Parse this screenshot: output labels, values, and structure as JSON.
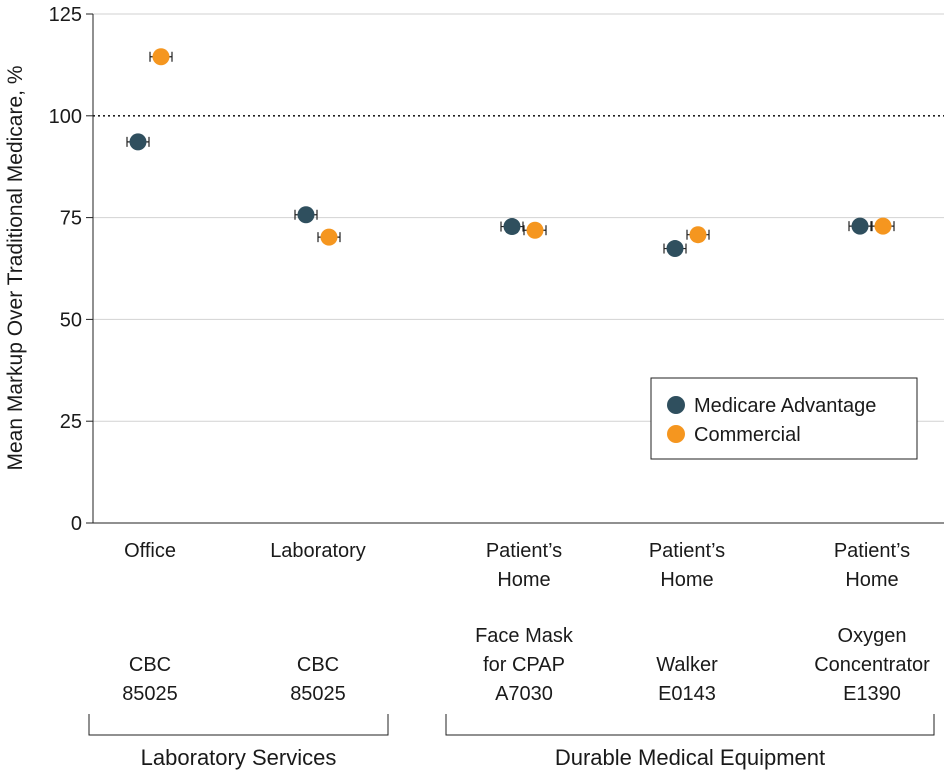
{
  "chart_data": {
    "type": "scatter",
    "ylabel": "Mean Markup Over Traditional Medicare, %",
    "ylim": [
      0,
      125
    ],
    "yticks": [
      0,
      25,
      50,
      75,
      100,
      125
    ],
    "reference_line": 100,
    "grid": true,
    "legend_position": "bottom-right",
    "categories": [
      {
        "setting": [
          "Office"
        ],
        "item": [
          "CBC",
          "85025"
        ]
      },
      {
        "setting": [
          "Laboratory"
        ],
        "item": [
          "CBC",
          "85025"
        ]
      },
      {
        "setting": [
          "Patient’s",
          "Home"
        ],
        "item": [
          "Face Mask",
          "for CPAP",
          "A7030"
        ]
      },
      {
        "setting": [
          "Patient’s",
          "Home"
        ],
        "item": [
          "Walker",
          "E0143"
        ]
      },
      {
        "setting": [
          "Patient’s",
          "Home"
        ],
        "item": [
          "Oxygen",
          "Concentrator",
          "E1390"
        ]
      }
    ],
    "groups": [
      {
        "label": "Laboratory Services",
        "categories": [
          0,
          1
        ]
      },
      {
        "label": "Durable Medical Equipment",
        "categories": [
          2,
          3,
          4
        ]
      }
    ],
    "series": [
      {
        "name": "Medicare Advantage",
        "color": "#2f4f5e",
        "values": [
          93.6,
          75.7,
          72.8,
          67.4,
          72.9
        ]
      },
      {
        "name": "Commercial",
        "color": "#f5961f",
        "values": [
          114.5,
          70.2,
          71.9,
          70.8,
          72.9
        ]
      }
    ]
  }
}
